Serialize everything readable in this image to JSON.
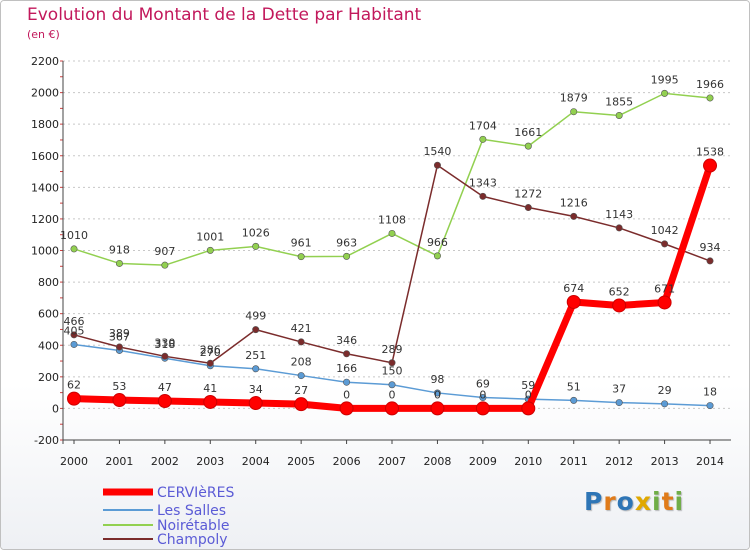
{
  "chart_data": {
    "type": "line",
    "title": "Evolution du Montant de la Dette par Habitant",
    "subtitle": "(en €)",
    "x": [
      "2000",
      "2001",
      "2002",
      "2003",
      "2004",
      "2005",
      "2006",
      "2007",
      "2008",
      "2009",
      "2010",
      "2011",
      "2012",
      "2013",
      "2014"
    ],
    "ylim": [
      -200,
      2200
    ],
    "yticks": [
      -200,
      0,
      200,
      400,
      600,
      800,
      1000,
      1200,
      1400,
      1600,
      1800,
      2000,
      2200
    ],
    "grid": "horizontal-dashed",
    "legend_position": "bottom-left",
    "series": [
      {
        "name": "CERVIèRES",
        "color": "#ff0000",
        "values": [
          62,
          53,
          47,
          41,
          34,
          27,
          0,
          0,
          0,
          0,
          0,
          674,
          652,
          671,
          1538
        ],
        "labels": [
          "62",
          "53",
          "47",
          "41",
          "34",
          "27",
          "0",
          "0",
          "0",
          "0",
          "0",
          "674",
          "652",
          "671",
          "1538"
        ]
      },
      {
        "name": "Les Salles",
        "color": "#5b9bd5",
        "values": [
          405,
          367,
          318,
          270,
          251,
          208,
          166,
          150,
          98,
          69,
          59,
          51,
          37,
          29,
          18
        ],
        "labels": [
          "405",
          "367",
          "318",
          "270",
          "251",
          "208",
          "166",
          "150",
          "98",
          "69",
          "59",
          "51",
          "37",
          "29",
          "18"
        ]
      },
      {
        "name": "Noirétable",
        "color": "#92d050",
        "values": [
          1010,
          918,
          907,
          1001,
          1026,
          961,
          963,
          1108,
          966,
          1704,
          1661,
          1879,
          1855,
          1995,
          1966
        ],
        "labels": [
          "1010",
          "918",
          "907",
          "1001",
          "1026",
          "961",
          "963",
          "1108",
          "966",
          "1704",
          "1661",
          "1879",
          "1855",
          "1995",
          "1966"
        ]
      },
      {
        "name": "Champoly",
        "color": "#7b2c2c",
        "values": [
          466,
          389,
          330,
          286,
          499,
          421,
          346,
          289,
          1540,
          1343,
          1272,
          1216,
          1143,
          1042,
          934
        ],
        "labels": [
          "466",
          "389",
          "330",
          "286",
          "499",
          "421",
          "346",
          "289",
          "1540",
          "1343",
          "1272",
          "1216",
          "1143",
          "1042",
          "934"
        ]
      }
    ]
  },
  "logo": {
    "letters": [
      {
        "ch": "P",
        "color": "#2e75b6"
      },
      {
        "ch": "r",
        "color": "#e07b1a"
      },
      {
        "ch": "o",
        "color": "#2e75b6"
      },
      {
        "ch": "x",
        "color": "#e0a800"
      },
      {
        "ch": "i",
        "color": "#70ad47"
      },
      {
        "ch": "t",
        "color": "#e07b1a"
      },
      {
        "ch": "i",
        "color": "#70ad47"
      }
    ]
  }
}
